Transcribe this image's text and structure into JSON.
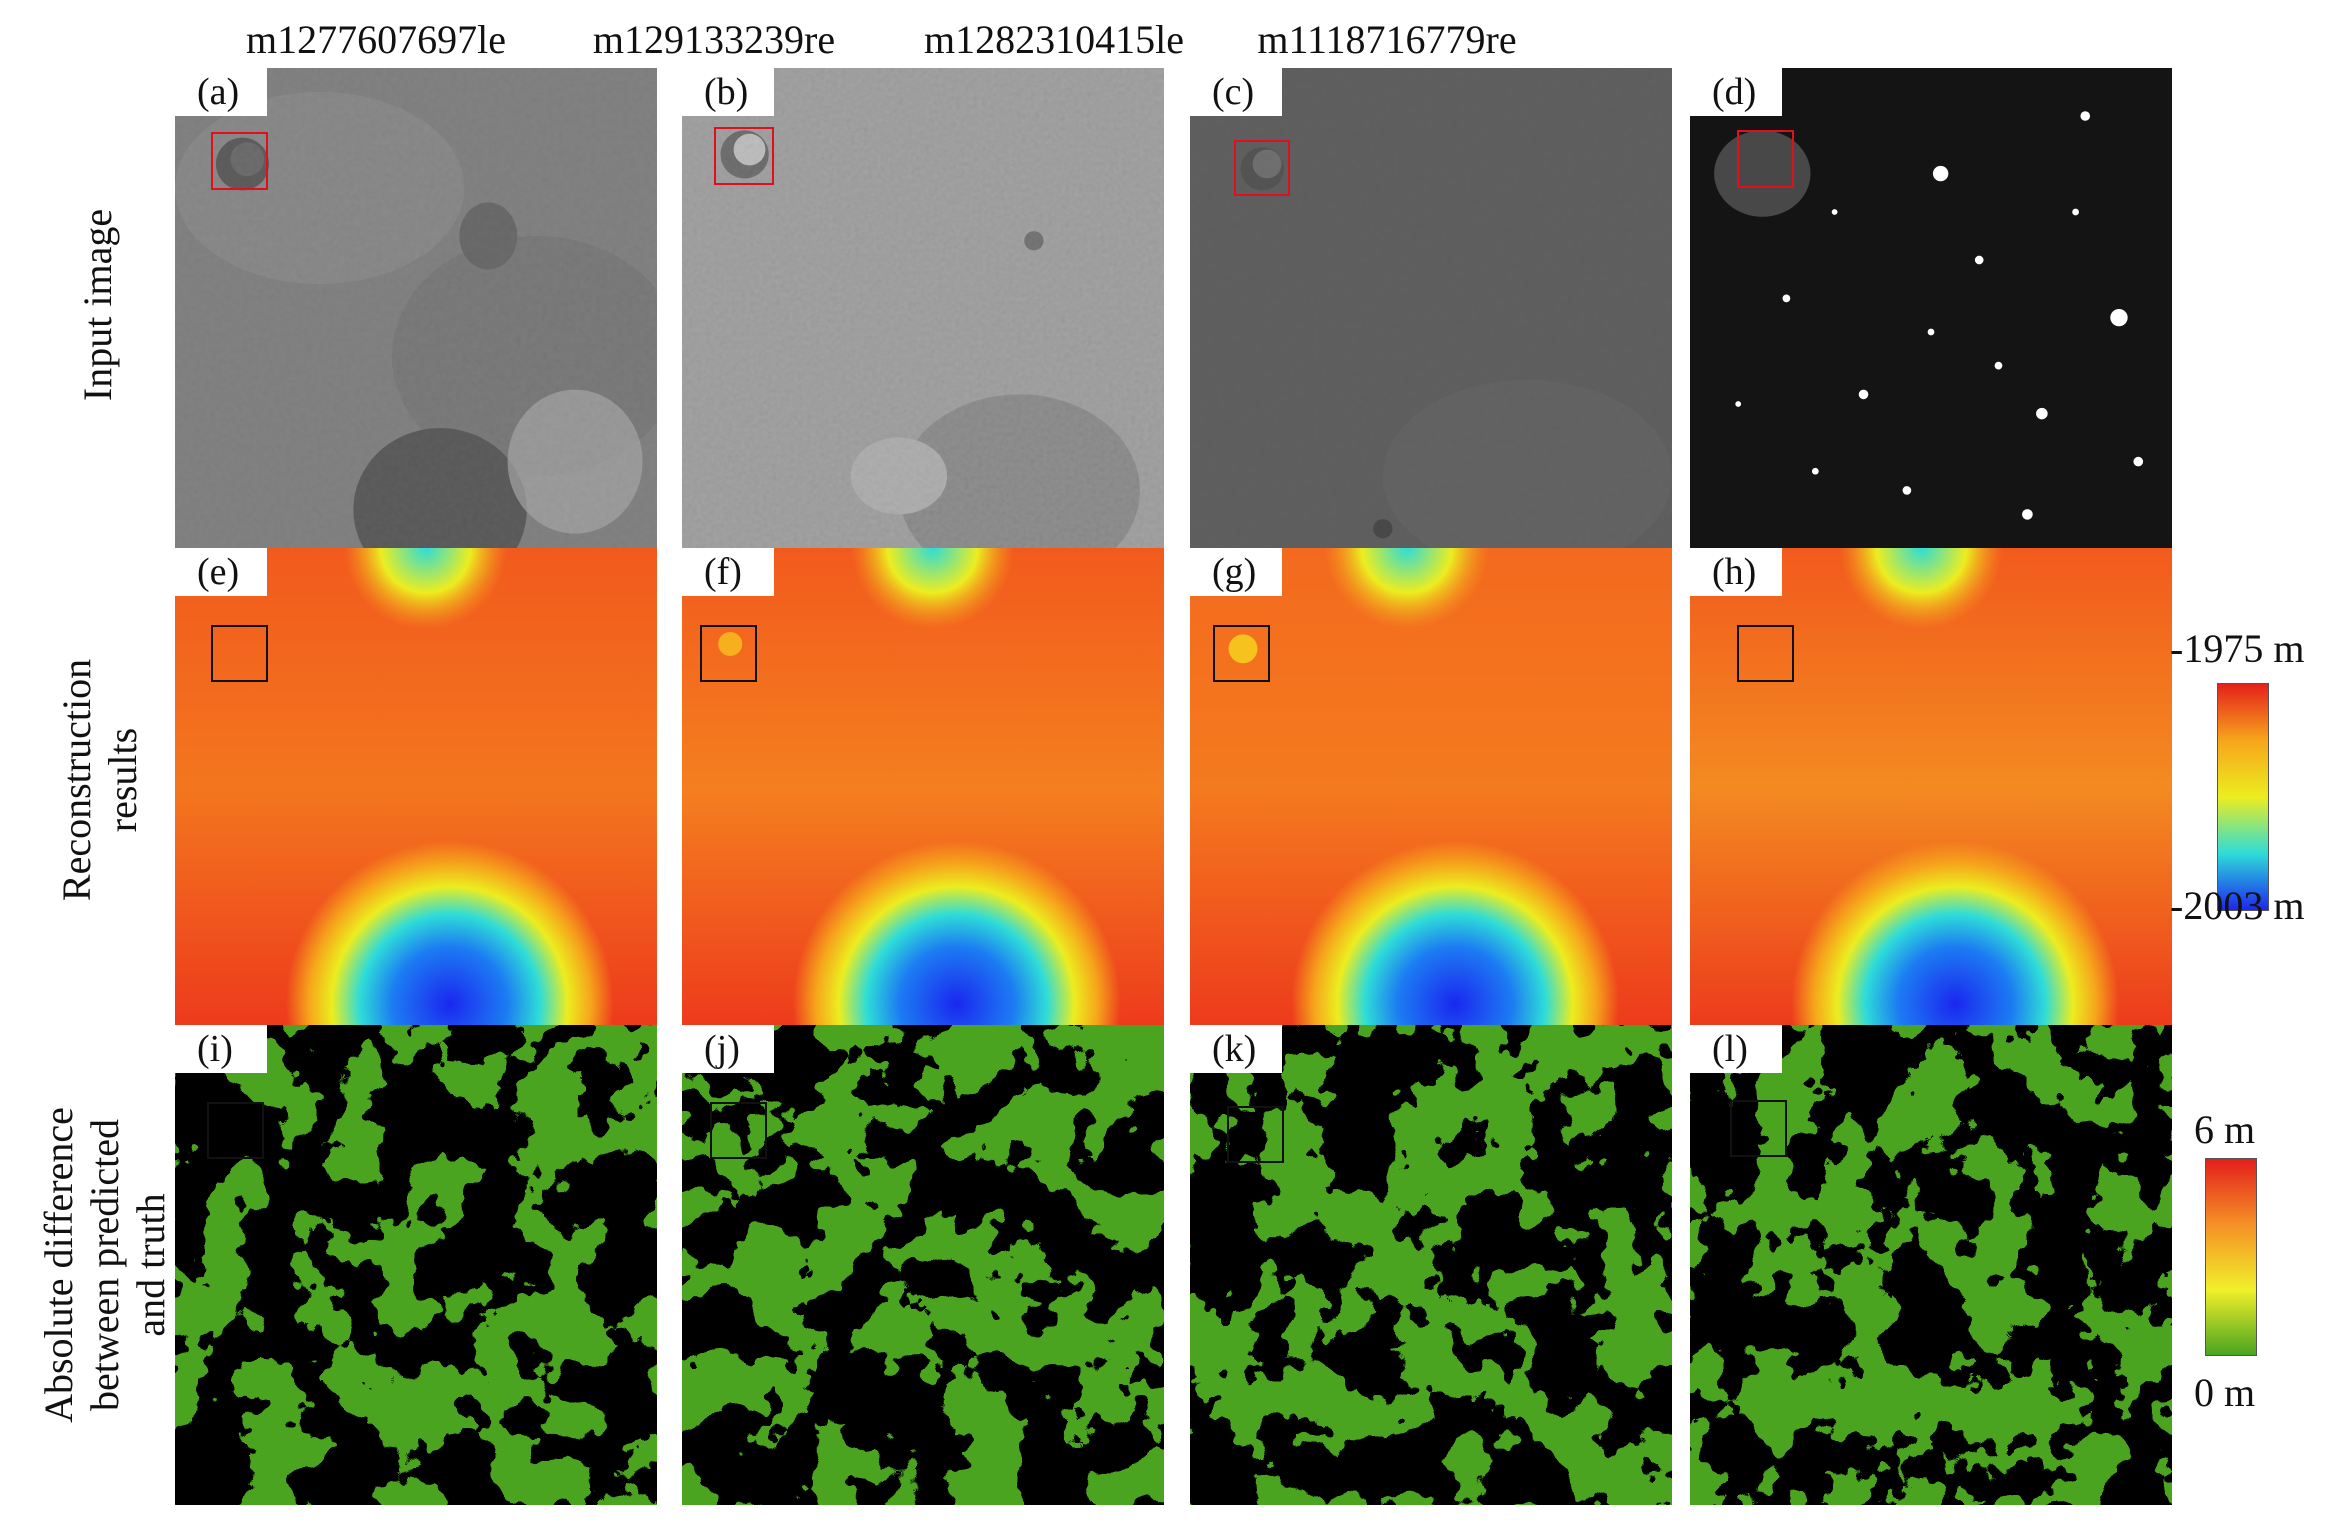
{
  "columns": [
    {
      "image_id": "m1277607697le"
    },
    {
      "image_id": "m129133239re"
    },
    {
      "image_id": "m1282310415le"
    },
    {
      "image_id": "m1118716779re"
    }
  ],
  "rows": [
    {
      "label": "Input image"
    },
    {
      "label_line1": "Reconstruction",
      "label_line2": "results"
    },
    {
      "label_line1": "Absolute difference",
      "label_line2": "between predicted",
      "label_line3": "and truth"
    }
  ],
  "panels": {
    "input": [
      "(a)",
      "(b)",
      "(c)",
      "(d)"
    ],
    "reconstruction": [
      "(e)",
      "(f)",
      "(g)",
      "(h)"
    ],
    "difference": [
      "(i)",
      "(j)",
      "(k)",
      "(l)"
    ]
  },
  "elevation_colorbar": {
    "max_label": "-1975 m",
    "min_label": "-2003 m",
    "colors_top_to_bottom": [
      "#e5201b",
      "#f6a51b",
      "#eced1f",
      "#2edcd8",
      "#1b27f0"
    ]
  },
  "difference_colorbar": {
    "max_label": "6 m",
    "min_label": "0 m",
    "colors_top_to_bottom": [
      "#e31f1c",
      "#f59026",
      "#f1f02a",
      "#4aa420"
    ]
  },
  "box_colors": {
    "input_roi": "#e0101a",
    "reconstruction_roi": "#111111",
    "difference_roi": "#111111"
  }
}
